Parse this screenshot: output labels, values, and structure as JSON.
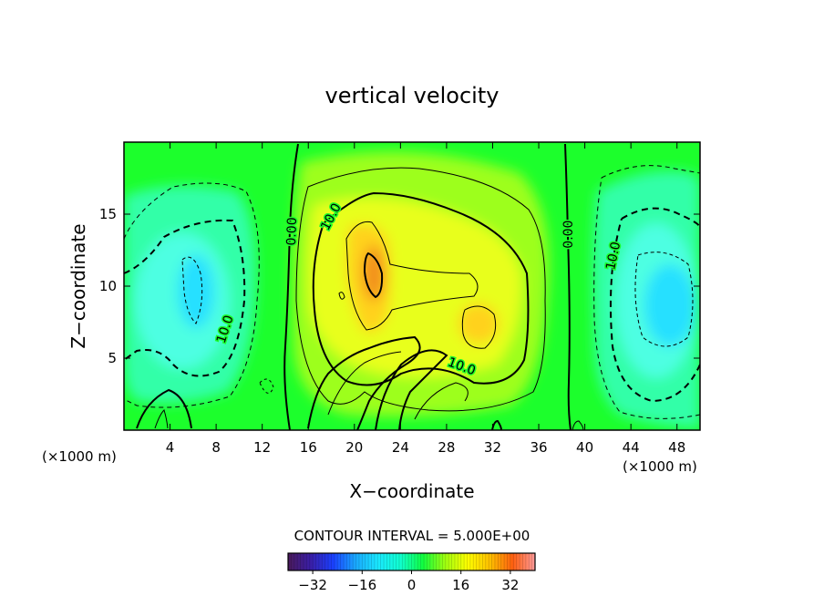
{
  "chart_data": {
    "type": "heatmap",
    "title": "vertical velocity",
    "xlabel": "X−coordinate",
    "ylabel": "Z−coordinate",
    "xunit_left": "(×1000 m)",
    "xunit_right": "(×1000 m)",
    "xlim": [
      0,
      50
    ],
    "ylim": [
      0,
      20
    ],
    "x_ticks": [
      4,
      8,
      12,
      16,
      20,
      24,
      28,
      32,
      36,
      40,
      44,
      48
    ],
    "y_ticks": [
      5,
      10,
      15
    ],
    "contour_labels": [
      {
        "text": "0.00",
        "x": 14.6,
        "y": 13.8,
        "rotate": -88
      },
      {
        "text": "10.0",
        "x": 18.0,
        "y": 14.8,
        "rotate": -62
      },
      {
        "text": "0.00",
        "x": 38.6,
        "y": 13.6,
        "rotate": -90
      },
      {
        "text": "10.0",
        "x": 42.5,
        "y": 12.1,
        "rotate": -78
      },
      {
        "text": "10.0",
        "x": 8.8,
        "y": 7.0,
        "rotate": -72
      },
      {
        "text": "10.0",
        "x": 29.3,
        "y": 4.4,
        "rotate": 20
      }
    ],
    "field_features": [
      {
        "kind": "max",
        "x": 22.0,
        "y": 10.5,
        "value": 25
      },
      {
        "kind": "max",
        "x": 30.3,
        "y": 7.2,
        "value": 18
      },
      {
        "kind": "min",
        "x": 46.5,
        "y": 9.0,
        "value": -15
      },
      {
        "kind": "min",
        "x": 6.5,
        "y": 9.5,
        "value": -12
      }
    ],
    "contour_interval_label": "CONTOUR INTERVAL =",
    "contour_interval_value": "5.000E+00",
    "colorbar": {
      "range": [
        -40,
        40
      ],
      "ticks": [
        -32,
        -16,
        0,
        16,
        32
      ],
      "tick_labels": [
        "−32",
        "−16",
        "0",
        "16",
        "32"
      ],
      "colors": [
        "#4a1a5a",
        "#3a1ea6",
        "#1a40ff",
        "#1aa8ff",
        "#1ae8ff",
        "#10ffd0",
        "#10ff40",
        "#a0ff10",
        "#ffff00",
        "#ffc000",
        "#ff6010",
        "#ff9a9a"
      ]
    },
    "field_colors": {
      "neutral": "#1cff2c",
      "pos_light": "#9dff1c",
      "pos_mid": "#e8ff1a",
      "pos_strong": "#ffd21a",
      "pos_max": "#f28f1c",
      "neg_light": "#30ffa8",
      "neg_mid": "#4dffe2",
      "neg_strong": "#28e0ff"
    }
  }
}
